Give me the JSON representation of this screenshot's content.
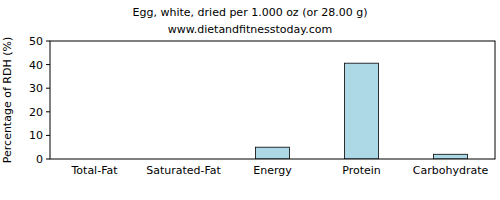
{
  "chart_data": {
    "type": "bar",
    "title": "Egg, white, dried per 1.000 oz (or 28.00 g)",
    "subtitle": "www.dietandfitnesstoday.com",
    "y_label": "Percentage of RDH (%)",
    "categories": [
      "Total-Fat",
      "Saturated-Fat",
      "Energy",
      "Protein",
      "Carbohydrate"
    ],
    "values": [
      0,
      0,
      5,
      40.6,
      2
    ],
    "color": "#add8e6",
    "ylim": [
      0,
      50
    ],
    "yticks": [
      0,
      10,
      20,
      30,
      40,
      50
    ],
    "grid": false
  }
}
